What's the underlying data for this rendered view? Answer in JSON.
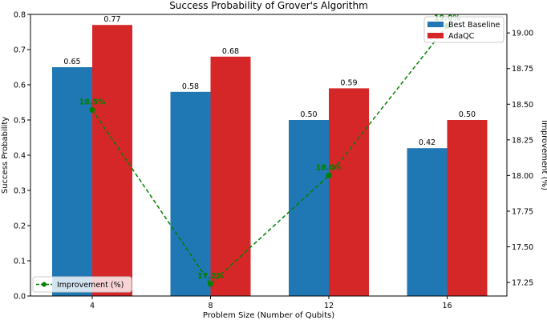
{
  "chart_data": {
    "type": "bar",
    "title": "Success Probability of Grover's Algorithm",
    "xlabel": "Problem Size (Number of Qubits)",
    "ylabel": "Success Probability",
    "y2label": "Improvement (%)",
    "categories": [
      "4",
      "8",
      "12",
      "16"
    ],
    "ylim": [
      0,
      0.8
    ],
    "yticks": [
      "0.0",
      "0.1",
      "0.2",
      "0.3",
      "0.4",
      "0.5",
      "0.6",
      "0.7",
      "0.8"
    ],
    "y2lim": [
      17.155,
      19.13
    ],
    "y2ticks": [
      "17.25",
      "17.50",
      "17.75",
      "18.00",
      "18.25",
      "18.50",
      "18.75",
      "19.00"
    ],
    "series": [
      {
        "name": "Best Baseline",
        "type": "bar",
        "color": "#1f77b4",
        "values": [
          0.65,
          0.58,
          0.5,
          0.42
        ],
        "labels": [
          "0.65",
          "0.58",
          "0.50",
          "0.42"
        ]
      },
      {
        "name": "AdaQC",
        "type": "bar",
        "color": "#d62728",
        "values": [
          0.77,
          0.68,
          0.59,
          0.5
        ],
        "labels": [
          "0.77",
          "0.68",
          "0.59",
          "0.50"
        ]
      },
      {
        "name": "Improvement (%)",
        "type": "line",
        "axis": "right",
        "color": "#008000",
        "values": [
          18.46,
          17.24,
          18.0,
          19.05
        ],
        "labels": [
          "18.5%",
          "17.2%",
          "18.0%",
          "19.0%"
        ]
      }
    ],
    "legend": {
      "bars_placement": "top-right",
      "line_placement": "bottom-left"
    },
    "grid": false
  }
}
